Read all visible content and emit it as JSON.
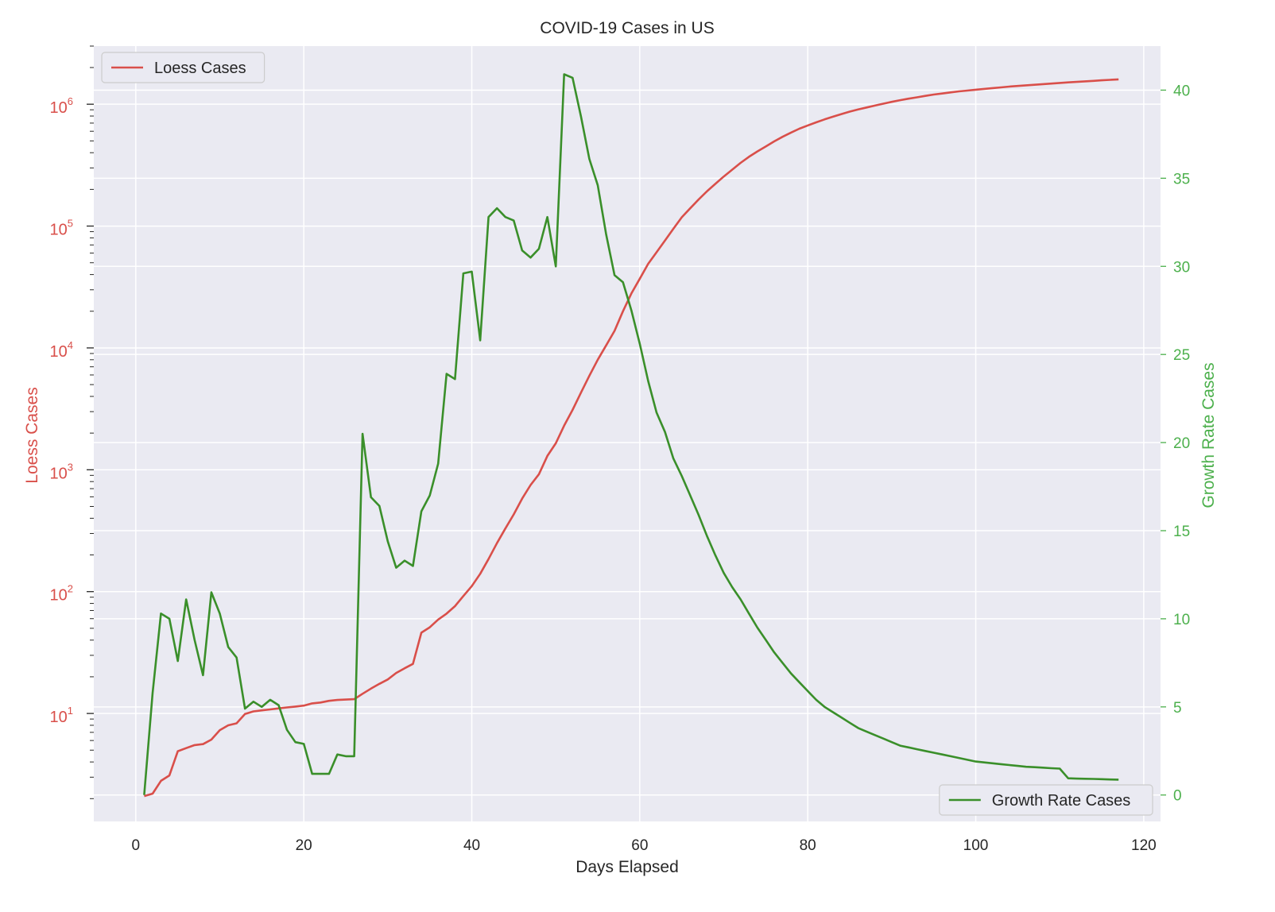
{
  "chart_data": {
    "type": "line",
    "title": "COVID-19 Cases in US",
    "xlabel": "Days Elapsed",
    "xlim": [
      -5,
      122
    ],
    "xticks": [
      0,
      20,
      40,
      60,
      80,
      100,
      120
    ],
    "grid": true,
    "colors": {
      "background": "#eaeaf2",
      "grid": "#ffffff",
      "loess": "#d94f4a",
      "growth": "#3a8f2a",
      "left_axis_text": "#d94f4a",
      "right_axis_text": "#4cb04c",
      "text": "#262626"
    },
    "left_axis": {
      "label": "Loess Cases",
      "scale": "log",
      "ylim": [
        1.3,
        3000000
      ],
      "tick_labels": [
        {
          "value": 10,
          "base": "10",
          "exp": "1"
        },
        {
          "value": 100,
          "base": "10",
          "exp": "2"
        },
        {
          "value": 1000,
          "base": "10",
          "exp": "3"
        },
        {
          "value": 10000,
          "base": "10",
          "exp": "4"
        },
        {
          "value": 100000,
          "base": "10",
          "exp": "5"
        },
        {
          "value": 1000000,
          "base": "10",
          "exp": "6"
        }
      ]
    },
    "right_axis": {
      "label": "Growth Rate Cases",
      "scale": "linear",
      "ylim": [
        -1.5,
        42.5
      ],
      "ticks": [
        0,
        5,
        10,
        15,
        20,
        25,
        30,
        35,
        40
      ]
    },
    "legends": [
      {
        "label": "Loess Cases",
        "position": "upper-left",
        "series": "loess"
      },
      {
        "label": "Growth Rate Cases",
        "position": "lower-right",
        "series": "growth"
      }
    ],
    "series": [
      {
        "name": "Loess Cases",
        "axis": "left",
        "x": [
          1,
          2,
          3,
          4,
          5,
          6,
          7,
          8,
          9,
          10,
          11,
          12,
          13,
          14,
          15,
          16,
          17,
          18,
          19,
          20,
          21,
          22,
          23,
          24,
          25,
          26,
          27,
          28,
          29,
          30,
          31,
          32,
          33,
          34,
          35,
          36,
          37,
          38,
          39,
          40,
          41,
          42,
          43,
          44,
          45,
          46,
          47,
          48,
          49,
          50,
          51,
          52,
          53,
          54,
          55,
          56,
          57,
          58,
          59,
          60,
          61,
          62,
          63,
          64,
          65,
          66,
          67,
          68,
          69,
          70,
          71,
          72,
          73,
          74,
          75,
          76,
          77,
          78,
          79,
          80,
          81,
          82,
          83,
          84,
          85,
          86,
          87,
          88,
          89,
          90,
          91,
          92,
          93,
          94,
          95,
          96,
          97,
          98,
          99,
          100,
          101,
          102,
          103,
          104,
          105,
          106,
          107,
          108,
          109,
          110,
          111,
          112,
          113,
          114,
          115,
          116,
          117
        ],
        "values": [
          2.1,
          2.2,
          2.8,
          3.1,
          4.9,
          5.2,
          5.5,
          5.6,
          6.1,
          7.3,
          8.0,
          8.3,
          9.9,
          10.4,
          10.6,
          10.8,
          11.0,
          11.2,
          11.4,
          11.6,
          12.1,
          12.3,
          12.7,
          12.9,
          13.0,
          13.1,
          14.5,
          16.0,
          17.5,
          19.0,
          21.5,
          23.5,
          25.5,
          46,
          51,
          59,
          66,
          76,
          92,
          111,
          140,
          185,
          250,
          330,
          430,
          580,
          750,
          920,
          1300,
          1650,
          2300,
          3100,
          4300,
          5900,
          8000,
          10500,
          13800,
          20000,
          28000,
          37000,
          49000,
          61000,
          76000,
          95000,
          118000,
          140000,
          165000,
          193000,
          222000,
          255000,
          290000,
          330000,
          370000,
          410000,
          450000,
          495000,
          540000,
          585000,
          630000,
          670000,
          710000,
          750000,
          790000,
          830000,
          870000,
          905000,
          940000,
          975000,
          1010000,
          1045000,
          1080000,
          1110000,
          1140000,
          1170000,
          1200000,
          1225000,
          1250000,
          1275000,
          1295000,
          1315000,
          1335000,
          1355000,
          1375000,
          1395000,
          1412000,
          1428000,
          1445000,
          1462000,
          1478000,
          1494000,
          1510000,
          1525000,
          1540000,
          1555000,
          1570000,
          1585000,
          1600000
        ]
      },
      {
        "name": "Growth Rate Cases",
        "axis": "right",
        "x": [
          1,
          2,
          3,
          4,
          5,
          6,
          7,
          8,
          9,
          10,
          11,
          12,
          13,
          14,
          15,
          16,
          17,
          18,
          19,
          20,
          21,
          22,
          23,
          24,
          25,
          26,
          27,
          28,
          29,
          30,
          31,
          32,
          33,
          34,
          35,
          36,
          37,
          38,
          39,
          40,
          41,
          42,
          43,
          44,
          45,
          46,
          47,
          48,
          49,
          50,
          51,
          52,
          53,
          54,
          55,
          56,
          57,
          58,
          59,
          60,
          61,
          62,
          63,
          64,
          65,
          66,
          67,
          68,
          69,
          70,
          71,
          72,
          73,
          74,
          75,
          76,
          77,
          78,
          79,
          80,
          81,
          82,
          83,
          84,
          85,
          86,
          87,
          88,
          89,
          90,
          91,
          92,
          93,
          94,
          95,
          96,
          97,
          98,
          99,
          100,
          101,
          102,
          103,
          104,
          105,
          106,
          107,
          108,
          109,
          110,
          111,
          112,
          113,
          114,
          115,
          116,
          117
        ],
        "values": [
          0.0,
          5.8,
          10.3,
          10.0,
          7.6,
          11.1,
          8.8,
          6.8,
          11.5,
          10.3,
          8.4,
          7.8,
          4.9,
          5.3,
          5.0,
          5.4,
          5.1,
          3.7,
          3.0,
          2.9,
          1.2,
          1.2,
          1.2,
          2.3,
          2.2,
          2.2,
          20.5,
          16.9,
          16.4,
          14.4,
          12.9,
          13.3,
          13.0,
          16.1,
          17.0,
          18.8,
          23.9,
          23.6,
          29.6,
          29.7,
          25.8,
          32.8,
          33.3,
          32.8,
          32.6,
          30.9,
          30.5,
          31.0,
          32.8,
          30.0,
          40.9,
          40.7,
          38.5,
          36.1,
          34.6,
          31.8,
          29.5,
          29.1,
          27.5,
          25.6,
          23.5,
          21.7,
          20.6,
          19.1,
          18.1,
          17.0,
          15.9,
          14.7,
          13.6,
          12.6,
          11.8,
          11.1,
          10.3,
          9.5,
          8.8,
          8.1,
          7.5,
          6.9,
          6.4,
          5.9,
          5.4,
          5.0,
          4.7,
          4.4,
          4.1,
          3.8,
          3.6,
          3.4,
          3.2,
          3.0,
          2.8,
          2.7,
          2.6,
          2.5,
          2.4,
          2.3,
          2.2,
          2.1,
          2.0,
          1.9,
          1.85,
          1.8,
          1.75,
          1.7,
          1.65,
          1.6,
          1.58,
          1.55,
          1.52,
          1.5,
          0.95,
          0.93,
          0.92,
          0.91,
          0.9,
          0.88,
          0.87
        ]
      }
    ]
  }
}
